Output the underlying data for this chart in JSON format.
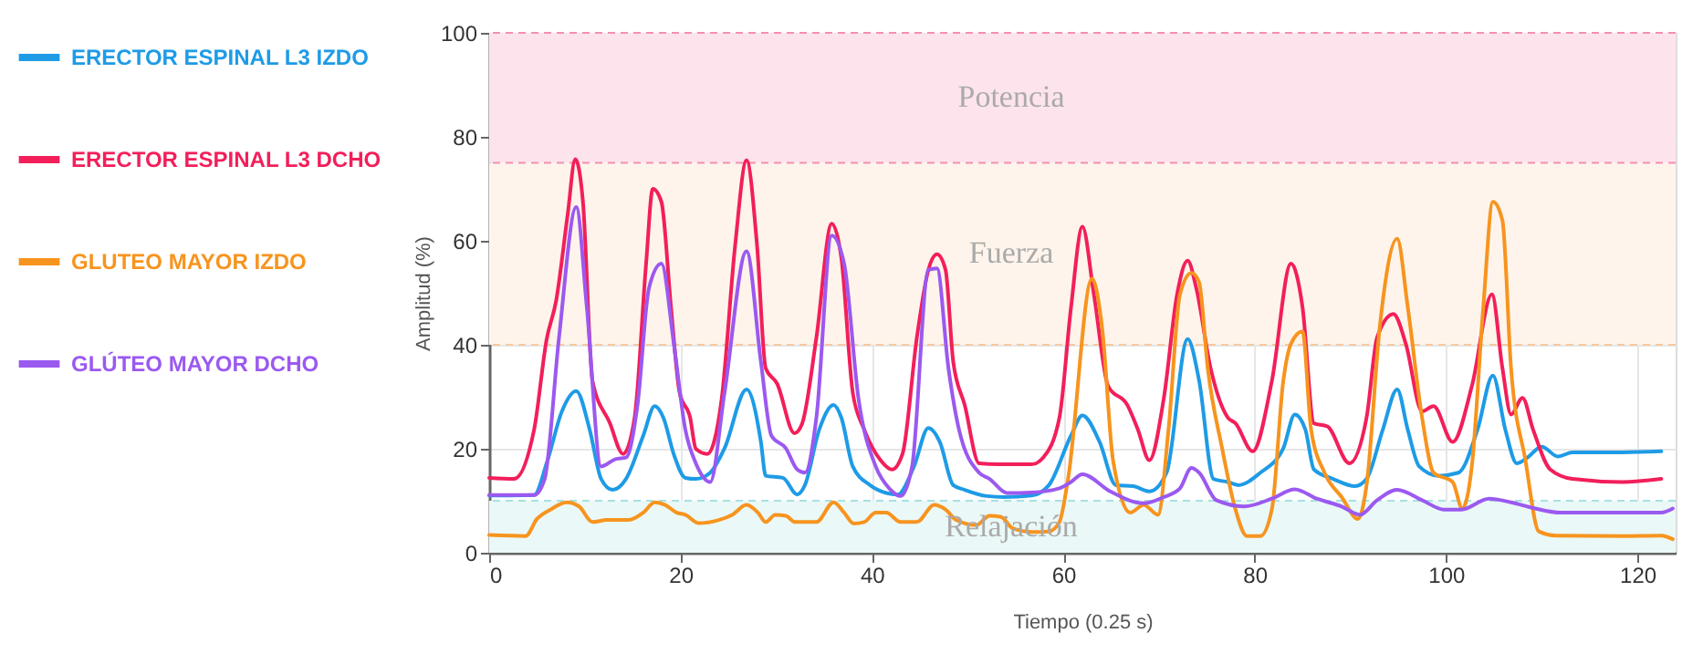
{
  "chart_data": {
    "type": "line",
    "xlabel": "Tiempo (0.25 s)",
    "ylabel": "Amplitud (%)",
    "xlim": [
      0,
      124
    ],
    "ylim": [
      0,
      100
    ],
    "xticks": [
      0,
      20,
      40,
      60,
      80,
      100,
      120
    ],
    "yticks": [
      0,
      20,
      40,
      60,
      80,
      100
    ],
    "grid": true,
    "legend": "left",
    "marker": "none",
    "line_style": "solid",
    "series": [
      {
        "name": "ERECTOR ESPINAL L3 IZDO",
        "color": "#1e9be6",
        "x": [
          0,
          4.7,
          6.1,
          7.6,
          9.1,
          10.5,
          11.7,
          12.9,
          14.3,
          16.1,
          17.3,
          18.2,
          19.3,
          20.5,
          21.6,
          23.1,
          24.6,
          26.9,
          28.4,
          28.9,
          30.7,
          32.2,
          33,
          34.5,
          36,
          36.8,
          38,
          39.8,
          41.5,
          42.7,
          44.4,
          45.9,
          47.1,
          48.5,
          49.7,
          52,
          53.8,
          56.7,
          58.5,
          60.8,
          62,
          63.8,
          65.5,
          67.3,
          69,
          70.8,
          73,
          74.2,
          75.7,
          77.2,
          78.3,
          80.6,
          83,
          84.2,
          85.3,
          86.2,
          88.2,
          90.5,
          91.7,
          93.4,
          94.9,
          96,
          97.2,
          99.2,
          101.3,
          103.3,
          104.9,
          106.2,
          107.4,
          108.5,
          110,
          111.7,
          113.2,
          118.4,
          122.5
        ],
        "values": [
          11,
          11.1,
          17.8,
          27.2,
          31.1,
          23.7,
          14.2,
          12.1,
          14.2,
          22.5,
          28.2,
          26,
          18.9,
          14.4,
          14.2,
          15.4,
          20.1,
          31.4,
          21.3,
          14.8,
          14.4,
          11.2,
          13,
          23.7,
          28.4,
          26,
          16.6,
          13,
          11.5,
          11.2,
          16.6,
          24,
          21.3,
          13,
          12.1,
          10.9,
          10.7,
          11,
          13,
          22.5,
          26.4,
          21.3,
          13,
          12.8,
          11.8,
          15.4,
          41.1,
          33.1,
          14.2,
          13.6,
          13,
          15.4,
          20.1,
          26.6,
          23.7,
          16,
          14.2,
          12.8,
          14.2,
          23.7,
          31.4,
          23.7,
          16.6,
          14.8,
          15.4,
          23.7,
          34.1,
          23.7,
          17.2,
          18.3,
          20.4,
          18.5,
          19.3,
          19.3,
          19.5
        ]
      },
      {
        "name": "ERECTOR ESPINAL L3 DCHO",
        "color": "#f21f5a",
        "x": [
          0,
          2.6,
          4.7,
          6,
          7,
          8.2,
          9,
          9.8,
          10.8,
          12.6,
          14,
          15.2,
          16.4,
          17.1,
          18,
          19,
          19.9,
          21,
          21.6,
          22.8,
          24.3,
          25.7,
          26.9,
          28,
          28.9,
          30.1,
          31.9,
          32.7,
          34.2,
          35.8,
          36.8,
          38,
          39.2,
          40.9,
          42.1,
          43.2,
          44.7,
          45.9,
          46.8,
          47.7,
          48.5,
          49.7,
          51.2,
          53.2,
          56.7,
          57.9,
          59.6,
          60.8,
          62,
          63.2,
          64.7,
          66.7,
          67.8,
          69,
          70.5,
          71.9,
          73,
          73.9,
          75.4,
          77.2,
          78,
          79.8,
          81.8,
          83.8,
          85,
          86.2,
          87.6,
          89.9,
          91.7,
          92.8,
          94.5,
          95.8,
          97.5,
          98.7,
          100.7,
          102.7,
          104.8,
          105.9,
          106.8,
          108,
          109.1,
          110.9,
          113.2,
          118.4,
          122.5
        ],
        "values": [
          14.4,
          14.2,
          23.7,
          41,
          48.5,
          65,
          75.7,
          67.5,
          33,
          25,
          19,
          26,
          55.6,
          70,
          67.5,
          47.3,
          30.8,
          26,
          20,
          19,
          29.6,
          59,
          75.5,
          59,
          35.5,
          32.5,
          23,
          24.8,
          41.4,
          63.3,
          56.8,
          30.8,
          23.7,
          17.8,
          16,
          19,
          41.4,
          54.4,
          57.4,
          54.4,
          36.7,
          28.4,
          17.2,
          17,
          17,
          18.3,
          26,
          47,
          62.7,
          49.7,
          32,
          28.4,
          23.7,
          17.8,
          29.6,
          49.7,
          56.2,
          50.9,
          35.5,
          26,
          24.9,
          19.5,
          33,
          55.6,
          47.3,
          24.9,
          24.3,
          17.2,
          26,
          41.4,
          45.9,
          40.2,
          27.2,
          28.2,
          21.3,
          32,
          49.7,
          35.5,
          26.6,
          29.8,
          23.7,
          16,
          14.2,
          13.6,
          14.2
        ]
      },
      {
        "name": "GLUTEO MAYOR IZDO",
        "color": "#f7941e",
        "x": [
          0,
          3.8,
          5,
          6.4,
          8.1,
          9.4,
          10.8,
          12.3,
          14.6,
          16.1,
          17.3,
          18.4,
          19.6,
          20.5,
          21.9,
          24,
          25.4,
          26.9,
          28.1,
          28.9,
          29.9,
          31,
          32,
          34.2,
          36,
          37.1,
          38.1,
          39.2,
          40.4,
          41.5,
          43,
          44.7,
          46.5,
          47.7,
          48.8,
          50.9,
          52.3,
          53.5,
          54.7,
          56.7,
          58.5,
          59.6,
          60.5,
          63,
          64.1,
          65.2,
          67,
          68.4,
          69.9,
          71,
          72.2,
          73.4,
          74.2,
          75.1,
          76.6,
          78,
          79.2,
          80.6,
          81.8,
          83,
          83.8,
          85,
          85.9,
          87.3,
          89.1,
          90.8,
          91.7,
          93.1,
          94.9,
          96,
          97.5,
          98.7,
          100.7,
          101.7,
          102.7,
          103.9,
          104.9,
          105.9,
          106.8,
          108.3,
          109.7,
          111.5,
          118.4,
          122.5,
          123.7
        ],
        "values": [
          3.4,
          3.2,
          6.5,
          8.3,
          9.7,
          8.9,
          5.9,
          6.3,
          6.3,
          7.7,
          9.7,
          9.2,
          7.7,
          7.3,
          5.7,
          6.3,
          7.3,
          9.2,
          7.7,
          5.9,
          7.3,
          7.1,
          5.9,
          5.9,
          9.7,
          7.7,
          5.6,
          5.9,
          7.7,
          7.7,
          5.9,
          5.9,
          9.2,
          8.3,
          6.3,
          5.3,
          7.1,
          6.9,
          4.7,
          4,
          4.1,
          5.9,
          14.2,
          52.7,
          42.6,
          17.8,
          7.7,
          9.2,
          7.3,
          23.7,
          49.7,
          53.8,
          52,
          35.5,
          20.1,
          8.3,
          3.2,
          3.2,
          8.3,
          33.1,
          40.2,
          42.6,
          23.7,
          15.4,
          10.7,
          6.5,
          13,
          43.8,
          60.4,
          47.3,
          26,
          15.4,
          13.6,
          8.5,
          16.6,
          47.3,
          67.5,
          63.9,
          35.5,
          17.8,
          4.1,
          3.3,
          3.2,
          3.3,
          2.6
        ]
      },
      {
        "name": "GLÚTEO MAYOR DCHO",
        "color": "#9b59f0",
        "x": [
          0,
          4.7,
          5.8,
          7.3,
          9.1,
          10.2,
          11.7,
          13.2,
          14.3,
          15.5,
          16.7,
          18,
          19.3,
          20.5,
          21.6,
          23.1,
          24.6,
          26.9,
          28.4,
          29.5,
          31,
          32.2,
          33,
          34.2,
          35.8,
          37.1,
          38.6,
          40.4,
          41.8,
          43,
          44.2,
          45.9,
          46.8,
          48,
          49.1,
          51.2,
          52.3,
          54.1,
          56.7,
          59.6,
          60.8,
          62,
          64.9,
          68.4,
          70.5,
          72.2,
          73.4,
          74.2,
          76,
          78.9,
          81.8,
          84.2,
          86.5,
          89.1,
          91,
          92.8,
          94.9,
          97.5,
          99.8,
          101.6,
          104.5,
          106.8,
          109.1,
          112,
          118.4,
          122.5,
          123.7
        ],
        "values": [
          11.1,
          11.1,
          14.2,
          41.4,
          66.5,
          47.3,
          16.6,
          18,
          18.3,
          28.4,
          50.9,
          55.6,
          40.2,
          23.7,
          17.2,
          13.6,
          30.8,
          58,
          36.7,
          22.5,
          20.1,
          16,
          15.4,
          26,
          61,
          55.6,
          29.6,
          16.6,
          12.4,
          10.9,
          16.6,
          54.4,
          54.7,
          35.5,
          23.7,
          15.4,
          14.2,
          11.5,
          11.6,
          12.4,
          13.6,
          15.1,
          11.8,
          9.5,
          10.7,
          12.4,
          16.3,
          15.4,
          10.1,
          8.9,
          10.4,
          12.2,
          10.4,
          8.9,
          7.3,
          10.1,
          12.1,
          10.1,
          8.3,
          8.3,
          10.4,
          9.7,
          8.6,
          7.7,
          7.7,
          7.7,
          8.5
        ]
      }
    ],
    "bands": [
      {
        "axis": "y",
        "from": 75,
        "to": 100,
        "label": "Potencia",
        "color": "#fde4ec"
      },
      {
        "axis": "y",
        "from": 40,
        "to": 75,
        "label": "Fuerza",
        "color": "#fef4eb"
      },
      {
        "axis": "y",
        "from": 0,
        "to": 10,
        "label": "Relajación",
        "color": "#eaf8f7"
      }
    ],
    "ref_lines": [
      {
        "axis": "y",
        "value": 100,
        "color": "#f48fb1",
        "line_style": "dashed"
      },
      {
        "axis": "y",
        "value": 75,
        "color": "#f48fb1",
        "line_style": "dashed"
      },
      {
        "axis": "y",
        "value": 40,
        "color": "#f8c9a0",
        "line_style": "dashed"
      },
      {
        "axis": "y",
        "value": 10,
        "color": "#a8e0e0",
        "line_style": "dashed"
      }
    ]
  }
}
